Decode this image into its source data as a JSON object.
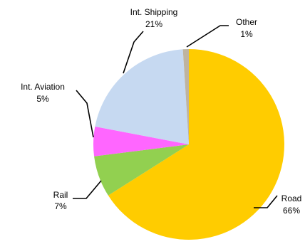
{
  "chart_data": {
    "type": "pie",
    "title": "",
    "slices": [
      {
        "label": "Road",
        "value": 66,
        "value_label": "66%",
        "color": "#FFCC00"
      },
      {
        "label": "Rail",
        "value": 7,
        "value_label": "7%",
        "color": "#92D050"
      },
      {
        "label": "Int. Aviation",
        "value": 5,
        "value_label": "5%",
        "color": "#FF66FF"
      },
      {
        "label": "Int. Shipping",
        "value": 21,
        "value_label": "21%",
        "color": "#C6D9F1"
      },
      {
        "label": "Other",
        "value": 1,
        "value_label": "1%",
        "color": "#BFB4A0"
      }
    ],
    "start_angle_deg": 0,
    "direction": "clockwise",
    "legend": "none",
    "data_labels": "outside with leader lines"
  }
}
